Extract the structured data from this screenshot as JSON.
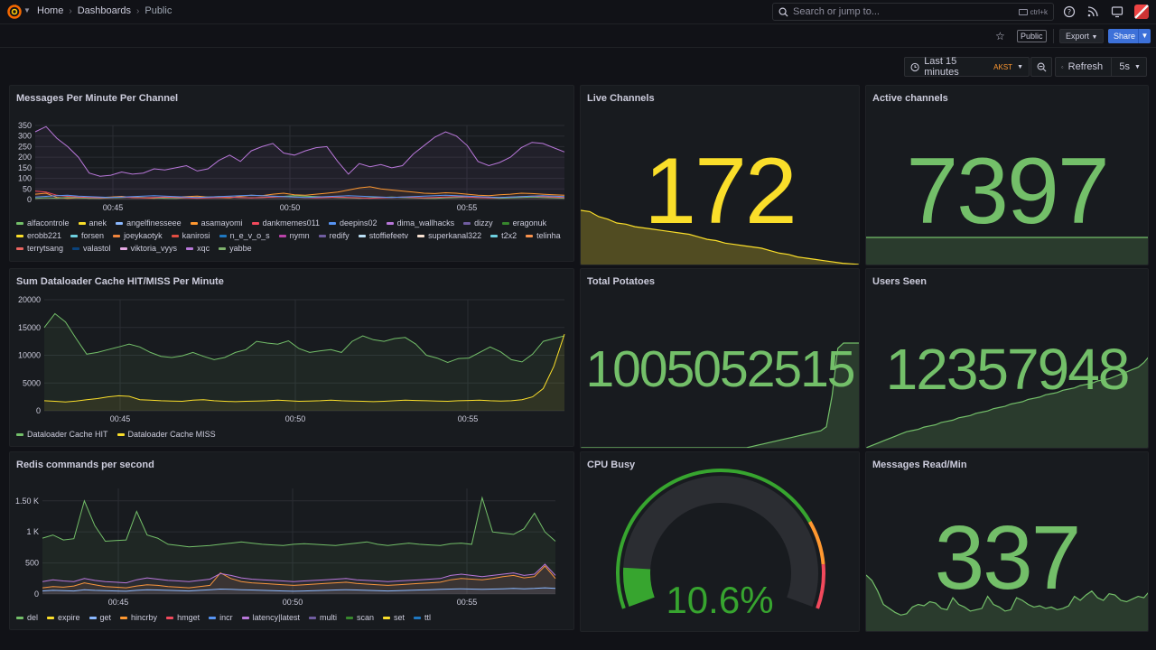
{
  "topbar": {
    "breadcrumbs": [
      "Home",
      "Dashboards",
      "Public"
    ],
    "search_placeholder": "Search or jump to...",
    "shortcut": "ctrl+k"
  },
  "subbar": {
    "public_label": "Public",
    "export_label": "Export",
    "share_label": "Share"
  },
  "toolbar": {
    "time_range": "Last 15 minutes",
    "timezone": "AKST",
    "refresh_label": "Refresh",
    "refresh_interval": "5s"
  },
  "colors": {
    "green": "#73bf69",
    "yellow": "#fade2a",
    "orange": "#ff9830",
    "red": "#f2495c",
    "blue": "#5794f2",
    "purple": "#b877d9"
  },
  "panels": {
    "messages": {
      "title": "Messages Per Minute Per Channel",
      "legend": [
        {
          "name": "alfacontrole",
          "color": "#73bf69"
        },
        {
          "name": "anek",
          "color": "#fade2a"
        },
        {
          "name": "angelfinesseee",
          "color": "#8ab8ff"
        },
        {
          "name": "asamayomi",
          "color": "#ff9830"
        },
        {
          "name": "dankmemes011",
          "color": "#f2495c"
        },
        {
          "name": "deepins02",
          "color": "#5794f2"
        },
        {
          "name": "dima_wallhacks",
          "color": "#b877d9"
        },
        {
          "name": "dizzy",
          "color": "#705da0"
        },
        {
          "name": "eragonuk",
          "color": "#37872d"
        },
        {
          "name": "erobb221",
          "color": "#fade2a"
        },
        {
          "name": "forsen",
          "color": "#6ed0e0"
        },
        {
          "name": "joeykaotyk",
          "color": "#ef843c"
        },
        {
          "name": "kanirosi",
          "color": "#e24d42"
        },
        {
          "name": "n_e_v_o_s",
          "color": "#1f78c1"
        },
        {
          "name": "nymn",
          "color": "#ba43a9"
        },
        {
          "name": "redify",
          "color": "#705da0"
        },
        {
          "name": "stoffiefeetv",
          "color": "#badff4"
        },
        {
          "name": "superkanal322",
          "color": "#f9e2d2"
        },
        {
          "name": "t2x2",
          "color": "#6ed0e0"
        },
        {
          "name": "telinha",
          "color": "#f9934e"
        },
        {
          "name": "terrytsang",
          "color": "#ea6460"
        },
        {
          "name": "valastol",
          "color": "#0a437c"
        },
        {
          "name": "viktoria_vyys",
          "color": "#e5a8e2"
        },
        {
          "name": "xqc",
          "color": "#b877d9"
        },
        {
          "name": "yabbe",
          "color": "#7eb26d"
        }
      ]
    },
    "live": {
      "title": "Live Channels",
      "value": "172"
    },
    "active": {
      "title": "Active channels",
      "value": "7397"
    },
    "cache": {
      "title": "Sum Dataloader Cache HIT/MISS Per Minute",
      "legend": [
        {
          "name": "Dataloader Cache HIT",
          "color": "#73bf69"
        },
        {
          "name": "Dataloader Cache MISS",
          "color": "#fade2a"
        }
      ]
    },
    "potatoes": {
      "title": "Total Potatoes",
      "value": "1005052515"
    },
    "users": {
      "title": "Users Seen",
      "value": "12357948"
    },
    "redis": {
      "title": "Redis commands per second",
      "legend": [
        {
          "name": "del",
          "color": "#73bf69"
        },
        {
          "name": "expire",
          "color": "#fade2a"
        },
        {
          "name": "get",
          "color": "#8ab8ff"
        },
        {
          "name": "hincrby",
          "color": "#ff9830"
        },
        {
          "name": "hmget",
          "color": "#f2495c"
        },
        {
          "name": "incr",
          "color": "#5794f2"
        },
        {
          "name": "latency|latest",
          "color": "#b877d9"
        },
        {
          "name": "multi",
          "color": "#705da0"
        },
        {
          "name": "scan",
          "color": "#37872d"
        },
        {
          "name": "set",
          "color": "#fade2a"
        },
        {
          "name": "ttl",
          "color": "#1f78c1"
        }
      ]
    },
    "cpu": {
      "title": "CPU Busy",
      "value": "10.6%",
      "percent": 10.6
    },
    "readmin": {
      "title": "Messages Read/Min",
      "value": "337"
    }
  },
  "chart_data": [
    {
      "type": "line",
      "title": "Messages Per Minute Per Channel",
      "ylim": [
        0,
        350
      ],
      "yticks": [
        0,
        50,
        100,
        150,
        200,
        250,
        300,
        350
      ],
      "xticks": [
        "00:45",
        "00:50",
        "00:55"
      ],
      "series": [
        {
          "name": "xqc",
          "values": [
            320,
            345,
            290,
            250,
            200,
            125,
            110,
            115,
            130,
            120,
            125,
            145,
            140,
            150,
            160,
            135,
            145,
            185,
            210,
            180,
            230,
            250,
            265,
            220,
            210,
            230,
            245,
            250,
            180,
            120,
            170,
            155,
            165,
            150,
            160,
            215,
            255,
            295,
            320,
            300,
            255,
            180,
            160,
            175,
            200,
            245,
            270,
            265,
            245,
            225
          ]
        },
        {
          "name": "asamayomi",
          "values": [
            25,
            30,
            10,
            5,
            8,
            6,
            10,
            12,
            15,
            10,
            8,
            6,
            10,
            12,
            14,
            16,
            12,
            10,
            8,
            15,
            20,
            18,
            25,
            30,
            22,
            20,
            25,
            30,
            35,
            45,
            55,
            60,
            50,
            45,
            40,
            35,
            30,
            28,
            32,
            30,
            25,
            20,
            18,
            22,
            25,
            30,
            28,
            25,
            22,
            20
          ]
        },
        {
          "name": "alfacontrole",
          "values": [
            5,
            8,
            6,
            10,
            8,
            6,
            5,
            8,
            10,
            12,
            10,
            8,
            6,
            5,
            8,
            10,
            12,
            14,
            12,
            10,
            8,
            10,
            12,
            15,
            18,
            16,
            14,
            12,
            10,
            8,
            6,
            8,
            10,
            12,
            10,
            8,
            6,
            5,
            8,
            10,
            12,
            10,
            8,
            6,
            8,
            10,
            12,
            10,
            8,
            6
          ]
        },
        {
          "name": "dankmemes011",
          "values": [
            40,
            35,
            20,
            15,
            12,
            10,
            8,
            10,
            12,
            10,
            8,
            10,
            12,
            10,
            8,
            6,
            8,
            10,
            12,
            10,
            8,
            10,
            12,
            14,
            12,
            10,
            8,
            10,
            12,
            10,
            8,
            6,
            8,
            10,
            12,
            10,
            8,
            10,
            12,
            14,
            12,
            10,
            8,
            10,
            12,
            14,
            16,
            14,
            12,
            10
          ]
        },
        {
          "name": "deepins02",
          "values": [
            12,
            15,
            18,
            20,
            16,
            14,
            12,
            10,
            12,
            14,
            16,
            18,
            16,
            14,
            12,
            10,
            12,
            14,
            16,
            18,
            20,
            18,
            16,
            14,
            12,
            10,
            12,
            14,
            16,
            18,
            16,
            14,
            12,
            10,
            12,
            14,
            16,
            18,
            20,
            18,
            16,
            14,
            12,
            10,
            12,
            14,
            16,
            18,
            16,
            14
          ]
        }
      ]
    },
    {
      "type": "line",
      "title": "Sum Dataloader Cache HIT/MISS Per Minute",
      "ylim": [
        0,
        20000
      ],
      "yticks": [
        0,
        5000,
        10000,
        15000,
        20000
      ],
      "xticks": [
        "00:45",
        "00:50",
        "00:55"
      ],
      "series": [
        {
          "name": "Dataloader Cache HIT",
          "values": [
            15000,
            17500,
            16000,
            13000,
            10200,
            10500,
            11000,
            11500,
            12000,
            11500,
            10500,
            9800,
            9600,
            9900,
            10500,
            9800,
            9200,
            9600,
            10500,
            11000,
            12500,
            12200,
            12000,
            12600,
            11200,
            10500,
            10800,
            11000,
            10500,
            12500,
            13500,
            12800,
            12500,
            13000,
            13200,
            12000,
            10000,
            9500,
            8700,
            9400,
            9500,
            10500,
            11500,
            10600,
            9200,
            8800,
            10200,
            12500,
            13000,
            13500
          ]
        },
        {
          "name": "Dataloader Cache MISS",
          "values": [
            1800,
            1700,
            1600,
            1750,
            2000,
            2200,
            2500,
            2700,
            2600,
            2000,
            1900,
            1800,
            1750,
            1700,
            1900,
            2000,
            1800,
            1700,
            1650,
            1700,
            1750,
            1800,
            1900,
            1800,
            1700,
            1750,
            1800,
            1900,
            1800,
            1750,
            1700,
            1650,
            1700,
            1800,
            1900,
            1850,
            1800,
            1750,
            1700,
            1800,
            1850,
            1900,
            1800,
            1750,
            1800,
            2000,
            2500,
            4000,
            8000,
            13800
          ]
        }
      ]
    },
    {
      "type": "line",
      "title": "Redis commands per second",
      "ylim": [
        0,
        1700
      ],
      "yticks": [
        "0",
        "500",
        "1 K",
        "1.50 K"
      ],
      "ytick_values": [
        0,
        500,
        1000,
        1500
      ],
      "xticks": [
        "00:45",
        "00:50",
        "00:55"
      ],
      "series": [
        {
          "name": "del",
          "values": [
            900,
            950,
            870,
            890,
            1500,
            1100,
            850,
            860,
            870,
            1330,
            950,
            900,
            800,
            780,
            760,
            770,
            780,
            800,
            820,
            840,
            820,
            800,
            790,
            780,
            800,
            810,
            800,
            790,
            780,
            800,
            820,
            840,
            800,
            780,
            800,
            820,
            800,
            790,
            780,
            810,
            820,
            800,
            1550,
            1000,
            980,
            960,
            1050,
            1300,
            1000,
            850
          ]
        },
        {
          "name": "hincrby",
          "values": [
            100,
            120,
            110,
            130,
            180,
            150,
            120,
            110,
            100,
            130,
            150,
            140,
            120,
            110,
            100,
            120,
            140,
            340,
            250,
            200,
            180,
            170,
            160,
            150,
            140,
            150,
            160,
            170,
            180,
            190,
            170,
            160,
            150,
            140,
            150,
            160,
            170,
            180,
            190,
            230,
            250,
            240,
            230,
            250,
            280,
            300,
            260,
            280,
            450,
            250
          ]
        },
        {
          "name": "latency|latest",
          "values": [
            200,
            230,
            210,
            200,
            250,
            220,
            200,
            190,
            180,
            230,
            260,
            240,
            220,
            210,
            200,
            220,
            240,
            330,
            300,
            260,
            240,
            230,
            220,
            210,
            200,
            210,
            220,
            230,
            240,
            250,
            230,
            220,
            210,
            200,
            210,
            220,
            230,
            240,
            250,
            300,
            320,
            300,
            280,
            300,
            320,
            340,
            300,
            320,
            480,
            300
          ]
        },
        {
          "name": "get",
          "values": [
            50,
            60,
            55,
            50,
            70,
            60,
            55,
            50,
            45,
            60,
            70,
            65,
            60,
            55,
            50,
            60,
            70,
            80,
            75,
            70,
            65,
            60,
            55,
            50,
            45,
            50,
            55,
            60,
            65,
            70,
            65,
            60,
            55,
            50,
            55,
            60,
            65,
            70,
            75,
            80,
            85,
            80,
            75,
            80,
            85,
            90,
            85,
            90,
            100,
            90
          ]
        }
      ]
    },
    {
      "type": "area",
      "title": "Live Channels",
      "values": [
        430,
        420,
        380,
        360,
        330,
        320,
        300,
        290,
        280,
        270,
        260,
        250,
        240,
        220,
        200,
        190,
        170,
        160,
        150,
        140,
        130,
        110,
        90,
        80,
        60,
        50,
        40,
        30,
        20,
        10,
        5,
        0
      ]
    },
    {
      "type": "area",
      "title": "Total Potatoes",
      "values": [
        0,
        0,
        0,
        0,
        0,
        0,
        0,
        0,
        0,
        0,
        0,
        0,
        0,
        0,
        0,
        0,
        0,
        0,
        0,
        0,
        0,
        0,
        0,
        0,
        0,
        0,
        0,
        0,
        0,
        0,
        5,
        10,
        15,
        20,
        25,
        30,
        35,
        40,
        45,
        50,
        55,
        60,
        65,
        80,
        200,
        380,
        400,
        400,
        400,
        400
      ]
    },
    {
      "type": "area",
      "title": "Users Seen",
      "values": [
        0,
        10,
        20,
        30,
        40,
        50,
        60,
        70,
        75,
        80,
        90,
        95,
        100,
        110,
        115,
        120,
        130,
        135,
        140,
        150,
        155,
        160,
        170,
        175,
        180,
        190,
        195,
        200,
        210,
        215,
        220,
        230,
        235,
        240,
        250,
        255,
        260,
        270,
        275,
        280,
        290,
        295,
        300,
        310,
        320,
        330,
        340,
        350,
        370,
        400
      ]
    },
    {
      "type": "area",
      "title": "Messages Read/Min",
      "values": [
        420,
        380,
        300,
        200,
        170,
        140,
        120,
        130,
        180,
        200,
        190,
        220,
        210,
        170,
        160,
        250,
        200,
        180,
        150,
        160,
        170,
        260,
        200,
        180,
        150,
        160,
        250,
        230,
        200,
        180,
        190,
        170,
        180,
        160,
        170,
        190,
        260,
        230,
        270,
        300,
        250,
        230,
        280,
        270,
        230,
        220,
        240,
        260,
        250,
        300
      ]
    }
  ]
}
